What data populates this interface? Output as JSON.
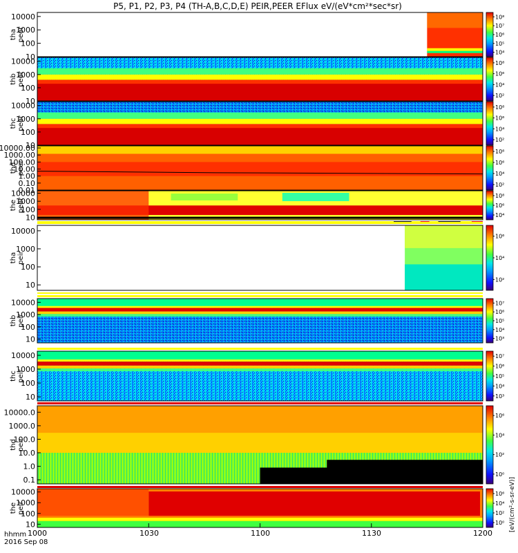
{
  "chart_data": {
    "type": "heatmap",
    "title": "P5, P1, P2, P3, P4 (TH-A,B,C,D,E) PEIR,PEER EFlux eV/(eV*cm²*sec*sr)",
    "x_format_label": "hhmm",
    "date_label": "2016 Sep 08",
    "x_ticks": [
      "1000",
      "1030",
      "1100",
      "1130",
      "1200"
    ],
    "x_range": [
      "10:00",
      "12:00"
    ],
    "colorbar_unit_label": "[eV/(cm²-s-sr-eV)]",
    "panels": [
      {
        "probe": "tha",
        "species": "peer",
        "ylog": true,
        "ylim": [
          10,
          20000
        ],
        "y_ticks": [
          "10000",
          "1000",
          "100",
          "10"
        ],
        "cbar_ticks": [
          "10⁴",
          "10⁵",
          "10⁶",
          "10⁷",
          "10⁸"
        ],
        "data_coverage": [
          11.75,
          12.0
        ],
        "peak_energy": 30
      },
      {
        "probe": "thb",
        "species": "peer",
        "ylog": true,
        "ylim": [
          10,
          20000
        ],
        "y_ticks": [
          "10000",
          "1000",
          "100",
          "10"
        ],
        "cbar_ticks": [
          "10²",
          "10⁴",
          "10⁶",
          "10⁸"
        ],
        "data_coverage": [
          10.0,
          12.0
        ],
        "peak_energy": 100
      },
      {
        "probe": "thc",
        "species": "peer",
        "ylog": true,
        "ylim": [
          10,
          20000
        ],
        "y_ticks": [
          "10000",
          "1000",
          "100",
          "10"
        ],
        "cbar_ticks": [
          "10²",
          "10⁴",
          "10⁶",
          "10⁸"
        ],
        "data_coverage": [
          10.0,
          12.0
        ],
        "peak_energy": 80
      },
      {
        "probe": "thd",
        "species": "peer",
        "ylog": true,
        "ylim": [
          0.01,
          20000
        ],
        "y_ticks": [
          "10000.00",
          "1000.00",
          "100.00",
          "10.00",
          "1.00",
          "0.10",
          "0.01"
        ],
        "cbar_ticks": [
          "10²",
          "10⁴",
          "10⁶",
          "10⁸"
        ],
        "data_coverage": [
          10.0,
          12.0
        ],
        "peak_energy": 3
      },
      {
        "probe": "the",
        "species": "peer",
        "ylog": true,
        "ylim": [
          5,
          20000
        ],
        "y_ticks": [
          "10000",
          "1000",
          "100",
          "10"
        ],
        "cbar_ticks": [
          "10⁴",
          "10⁶",
          "10⁸"
        ],
        "data_coverage": [
          10.0,
          12.0
        ],
        "peak_energy": 60
      },
      {
        "probe": "tha",
        "species": "peir",
        "ylog": true,
        "ylim": [
          5,
          20000
        ],
        "y_ticks": [
          "10000",
          "1000",
          "100",
          "10"
        ],
        "cbar_ticks": [
          "10²",
          "10⁴",
          "10⁶"
        ],
        "data_coverage": [
          11.65,
          12.0
        ],
        "peak_energy": 1000
      },
      {
        "probe": "thb",
        "species": "peir",
        "ylog": true,
        "ylim": [
          5,
          20000
        ],
        "y_ticks": [
          "10000",
          "1000",
          "100",
          "10"
        ],
        "cbar_ticks": [
          "10³",
          "10⁴",
          "10⁵",
          "10⁶",
          "10⁷"
        ],
        "data_coverage": [
          10.0,
          12.0
        ],
        "peak_energy": 2500
      },
      {
        "probe": "thc",
        "species": "peir",
        "ylog": true,
        "ylim": [
          5,
          20000
        ],
        "y_ticks": [
          "10000",
          "1000",
          "100",
          "10"
        ],
        "cbar_ticks": [
          "10³",
          "10⁴",
          "10⁵",
          "10⁶",
          "10⁷"
        ],
        "data_coverage": [
          10.0,
          12.0
        ],
        "peak_energy": 2000
      },
      {
        "probe": "thd",
        "species": "peir",
        "ylog": true,
        "ylim": [
          0.05,
          30000
        ],
        "y_ticks": [
          "10000.0",
          "1000.0",
          "100.0",
          "10.0",
          "1.0",
          "0.1"
        ],
        "cbar_ticks": [
          "10⁰",
          "10²",
          "10⁴",
          "10⁶"
        ],
        "data_coverage": [
          10.0,
          12.0
        ],
        "peak_energy": 3000
      },
      {
        "probe": "the",
        "species": "peir",
        "ylog": true,
        "ylim": [
          5,
          20000
        ],
        "y_ticks": [
          "10000",
          "1000",
          "100",
          "10"
        ],
        "cbar_ticks": [
          "10⁰",
          "10²",
          "10⁴",
          "10⁶"
        ],
        "data_coverage": [
          10.0,
          12.0
        ],
        "peak_energy": 1500
      }
    ]
  }
}
